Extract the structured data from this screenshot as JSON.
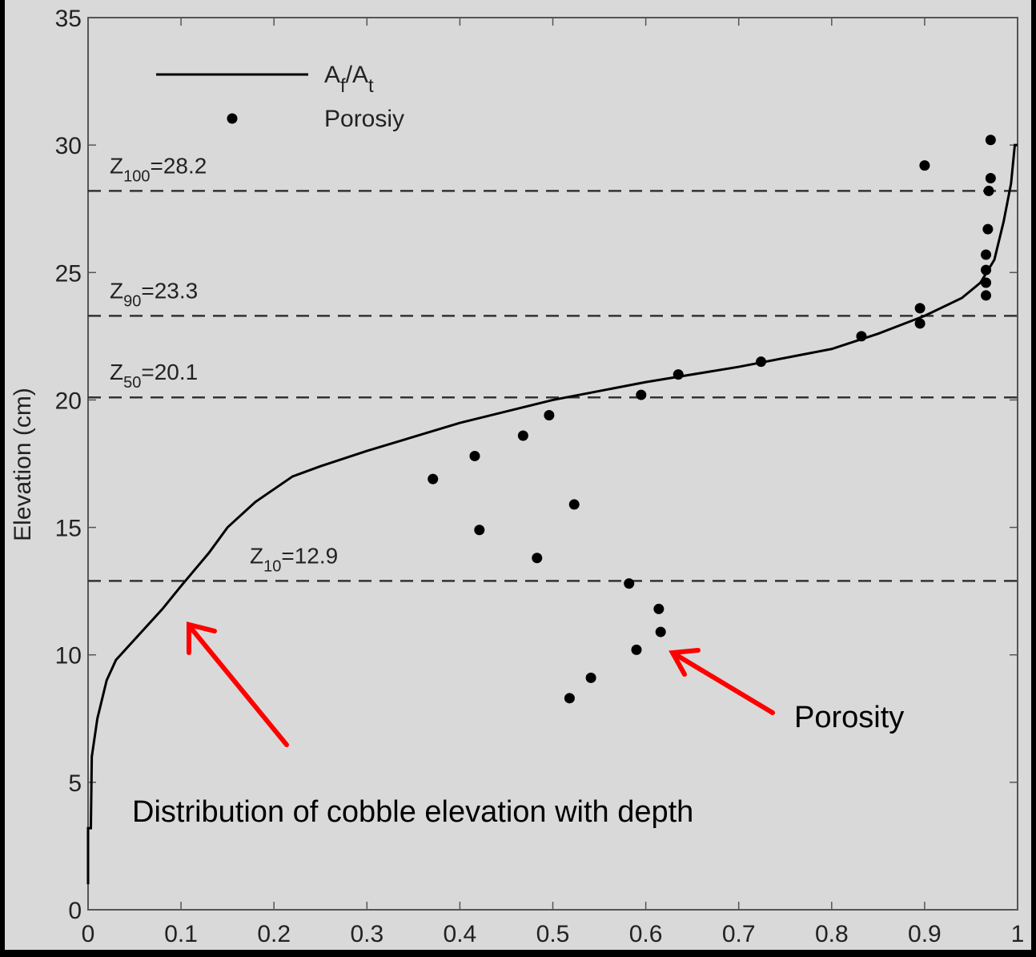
{
  "chart_data": {
    "type": "line",
    "ylabel": "Elevation (cm)",
    "xlim": [
      0,
      1
    ],
    "ylim": [
      0,
      35
    ],
    "xticks": [
      0,
      0.1,
      0.2,
      0.3,
      0.4,
      0.5,
      0.6,
      0.7,
      0.8,
      0.9,
      1
    ],
    "yticks": [
      0,
      5,
      10,
      15,
      20,
      25,
      30,
      35
    ],
    "series": [
      {
        "name": "Af/At",
        "type": "line",
        "color": "#000000",
        "x": [
          0,
          0,
          0.003,
          0.004,
          0.01,
          0.02,
          0.03,
          0.05,
          0.08,
          0.1,
          0.13,
          0.15,
          0.18,
          0.22,
          0.25,
          0.3,
          0.4,
          0.5,
          0.6,
          0.7,
          0.8,
          0.85,
          0.9,
          0.94,
          0.96,
          0.975,
          0.985,
          0.993,
          0.997,
          1
        ],
        "values": [
          1,
          3.2,
          3.2,
          6,
          7.5,
          9,
          9.8,
          10.6,
          11.8,
          12.7,
          14,
          15,
          16,
          17,
          17.4,
          18,
          19.1,
          20,
          20.7,
          21.3,
          22,
          22.6,
          23.3,
          24,
          24.6,
          25.5,
          27,
          28.5,
          30,
          30
        ]
      },
      {
        "name": "Porosiy",
        "type": "scatter",
        "color": "#000000",
        "x": [
          0.971,
          0.9,
          0.971,
          0.969,
          0.968,
          0.966,
          0.966,
          0.966,
          0.966,
          0.895,
          0.895,
          0.832,
          0.724,
          0.635,
          0.595,
          0.496,
          0.468,
          0.416,
          0.371,
          0.523,
          0.421,
          0.483,
          0.582,
          0.614,
          0.616,
          0.59,
          0.541,
          0.518
        ],
        "values": [
          30.2,
          29.2,
          28.7,
          28.2,
          26.7,
          25.7,
          25.1,
          24.6,
          24.1,
          23.6,
          23,
          22.5,
          21.5,
          21,
          20.2,
          19.4,
          18.6,
          17.8,
          16.9,
          15.9,
          14.9,
          13.8,
          12.8,
          11.8,
          10.9,
          10.2,
          9.1,
          8.3
        ]
      }
    ],
    "hlines": [
      {
        "value": 28.2,
        "label": "Z",
        "sub": "100",
        "rest": "=28.2"
      },
      {
        "value": 23.3,
        "label": "Z",
        "sub": "90",
        "rest": "=23.3"
      },
      {
        "value": 20.1,
        "label": "Z",
        "sub": "50",
        "rest": "=20.1"
      },
      {
        "value": 12.9,
        "label": "Z",
        "sub": "10",
        "rest": "=12.9"
      }
    ],
    "annotations": [
      "Porosity",
      "Distribution of cobble elevation with depth"
    ]
  }
}
